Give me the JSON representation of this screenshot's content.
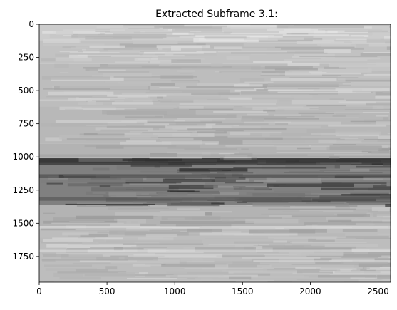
{
  "chart_data": {
    "type": "heatmap",
    "title": "Extracted Subframe 3.1:",
    "xlabel": "",
    "ylabel": "",
    "colormap": "gray",
    "xlim": [
      0,
      2592
    ],
    "ylim": [
      1944,
      0
    ],
    "x_ticks": [
      0,
      500,
      1000,
      1500,
      2000,
      2500
    ],
    "y_ticks": [
      0,
      250,
      500,
      750,
      1000,
      1250,
      1500,
      1750
    ],
    "grid": false,
    "description": "",
    "bands": [
      {
        "y0": 0,
        "y1": 120,
        "gray": 0.8
      },
      {
        "y0": 120,
        "y1": 300,
        "gray": 0.76
      },
      {
        "y0": 300,
        "y1": 620,
        "gray": 0.74
      },
      {
        "y0": 620,
        "y1": 900,
        "gray": 0.72
      },
      {
        "y0": 900,
        "y1": 1010,
        "gray": 0.7
      },
      {
        "y0": 1010,
        "y1": 1060,
        "gray": 0.28
      },
      {
        "y0": 1060,
        "y1": 1360,
        "gray": 0.5
      },
      {
        "y0": 1360,
        "y1": 1520,
        "gray": 0.7
      },
      {
        "y0": 1520,
        "y1": 1944,
        "gray": 0.74
      }
    ]
  }
}
